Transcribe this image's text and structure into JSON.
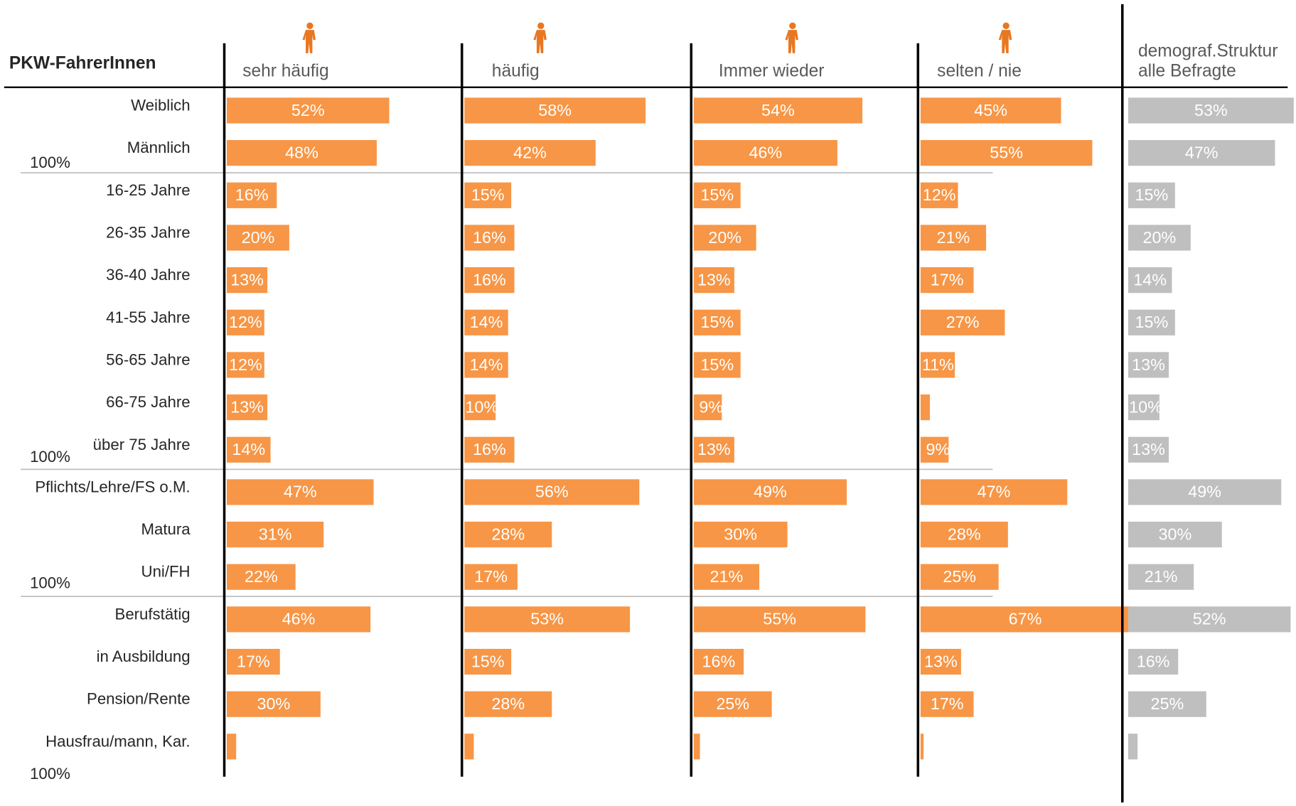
{
  "chart_data": {
    "type": "bar",
    "title": "PKW-FahrerInnen",
    "categories": [
      "Weiblich",
      "Männlich",
      "16-25 Jahre",
      "26-35 Jahre",
      "36-40 Jahre",
      "41-55 Jahre",
      "56-65 Jahre",
      "66-75 Jahre",
      "über 75 Jahre",
      "Pflichts/Lehre/FS o.M.",
      "Matura",
      "Uni/FH",
      "Berufstätig",
      "in Ausbildung",
      "Pension/Rente",
      "Hausfrau/mann, Kar."
    ],
    "group_totals": [
      "100%",
      "100%",
      "100%",
      "100%"
    ],
    "series": [
      {
        "name": "sehr häufig",
        "color": "#f79646",
        "values": [
          52,
          48,
          16,
          20,
          13,
          12,
          12,
          13,
          14,
          47,
          31,
          22,
          46,
          17,
          30,
          3
        ],
        "value_labels": [
          "52%",
          "48%",
          "16%",
          "20%",
          "13%",
          "12%",
          "12%",
          "13%",
          "14%",
          "47%",
          "31%",
          "22%",
          "46%",
          "17%",
          "30%",
          null
        ]
      },
      {
        "name": "häufig",
        "color": "#f79646",
        "values": [
          58,
          42,
          15,
          16,
          16,
          14,
          14,
          10,
          16,
          56,
          28,
          17,
          53,
          15,
          28,
          3
        ],
        "value_labels": [
          "58%",
          "42%",
          "15%",
          "16%",
          "16%",
          "14%",
          "14%",
          "10%",
          "16%",
          "56%",
          "28%",
          "17%",
          "53%",
          "15%",
          "28%",
          null
        ]
      },
      {
        "name": "Immer wieder",
        "color": "#f79646",
        "values": [
          54,
          46,
          15,
          20,
          13,
          15,
          15,
          9,
          13,
          49,
          30,
          21,
          55,
          16,
          25,
          2
        ],
        "value_labels": [
          "54%",
          "46%",
          "15%",
          "20%",
          "13%",
          "15%",
          "15%",
          "9%",
          "13%",
          "49%",
          "30%",
          "21%",
          "55%",
          "16%",
          "25%",
          null
        ]
      },
      {
        "name": "selten / nie",
        "color": "#f79646",
        "values": [
          45,
          55,
          12,
          21,
          17,
          27,
          11,
          3,
          9,
          47,
          28,
          25,
          67,
          13,
          17,
          1
        ],
        "value_labels": [
          "45%",
          "55%",
          "12%",
          "21%",
          "17%",
          "27%",
          "11%",
          null,
          "9%",
          "47%",
          "28%",
          "25%",
          "67%",
          "13%",
          "17%",
          null
        ]
      },
      {
        "name": "demograf.Struktur alle Befragte",
        "color": "#bfbfbf",
        "values": [
          53,
          47,
          15,
          20,
          14,
          15,
          13,
          10,
          13,
          49,
          30,
          21,
          52,
          16,
          25,
          3
        ],
        "value_labels": [
          "53%",
          "47%",
          "15%",
          "20%",
          "14%",
          "15%",
          "13%",
          "10%",
          "13%",
          "49%",
          "30%",
          "21%",
          "52%",
          "16%",
          "25%",
          null
        ]
      }
    ]
  }
}
